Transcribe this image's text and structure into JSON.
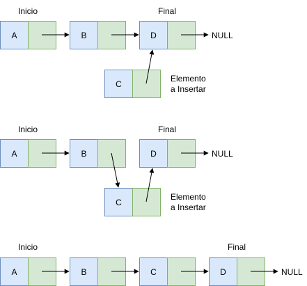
{
  "stages": [
    {
      "nodes": [
        {
          "id": "A",
          "label": "A"
        },
        {
          "id": "B",
          "label": "B"
        },
        {
          "id": "D",
          "label": "D"
        },
        {
          "id": "C",
          "label": "C"
        }
      ],
      "labels": {
        "head": "Inicio",
        "tail": "Final",
        "null": "NULL",
        "insert_line1": "Elemento",
        "insert_line2": "a Insertar"
      }
    },
    {
      "nodes": [
        {
          "id": "A",
          "label": "A"
        },
        {
          "id": "B",
          "label": "B"
        },
        {
          "id": "D",
          "label": "D"
        },
        {
          "id": "C",
          "label": "C"
        }
      ],
      "labels": {
        "head": "Inicio",
        "tail": "Final",
        "null": "NULL",
        "insert_line1": "Elemento",
        "insert_line2": "a Insertar"
      }
    },
    {
      "nodes": [
        {
          "id": "A",
          "label": "A"
        },
        {
          "id": "B",
          "label": "B"
        },
        {
          "id": "C",
          "label": "C"
        },
        {
          "id": "D",
          "label": "D"
        }
      ],
      "labels": {
        "head": "Inicio",
        "tail": "Final",
        "null": "NULL"
      }
    }
  ],
  "colors": {
    "data_fill": "#dae8fc",
    "data_stroke": "#6c8ebf",
    "ptr_fill": "#d5e8d4",
    "ptr_stroke": "#82b366"
  }
}
